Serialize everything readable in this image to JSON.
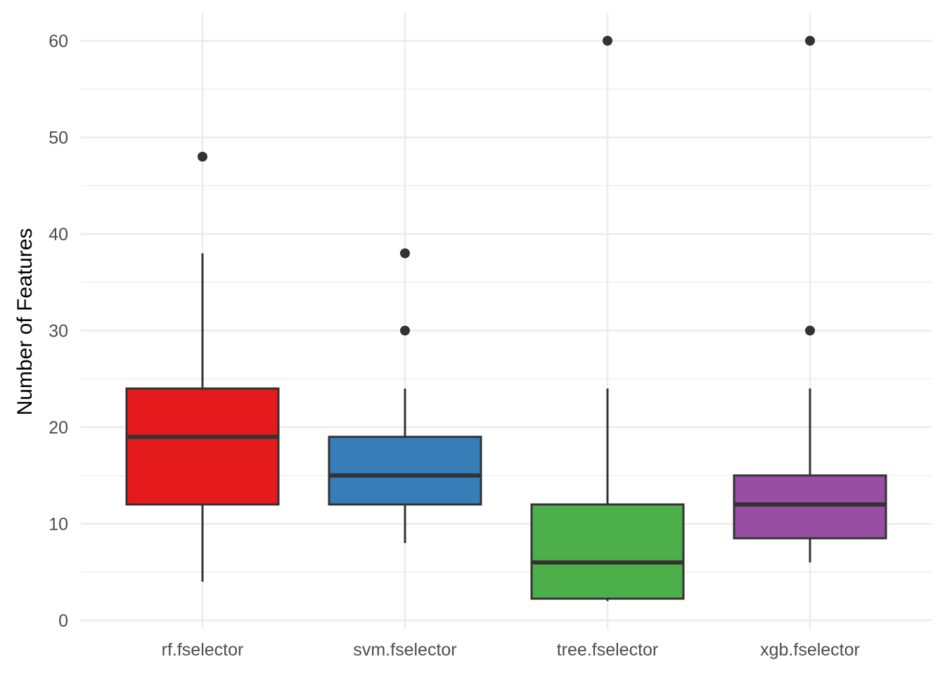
{
  "chart_data": {
    "type": "boxplot",
    "title": "",
    "xlabel": "",
    "ylabel": "Number of Features",
    "ylim": [
      0,
      62
    ],
    "yticks": [
      0,
      10,
      20,
      30,
      40,
      50,
      60
    ],
    "grid": true,
    "legend": "none",
    "categories": [
      "rf.fselector",
      "svm.fselector",
      "tree.fselector",
      "xgb.fselector"
    ],
    "boxes": [
      {
        "name": "rf.fselector",
        "color": "#E41A1C",
        "whisker_low": 4,
        "q1": 12,
        "median": 19,
        "q3": 24,
        "whisker_high": 38,
        "outliers": [
          48
        ]
      },
      {
        "name": "svm.fselector",
        "color": "#377EB8",
        "whisker_low": 8,
        "q1": 12,
        "median": 15,
        "q3": 19,
        "whisker_high": 24,
        "outliers": [
          30,
          38
        ]
      },
      {
        "name": "tree.fselector",
        "color": "#4DAF4A",
        "whisker_low": 2,
        "q1": 2.25,
        "median": 6,
        "q3": 12,
        "whisker_high": 24,
        "outliers": [
          60
        ]
      },
      {
        "name": "xgb.fselector",
        "color": "#984EA3",
        "whisker_low": 6,
        "q1": 8.5,
        "median": 12,
        "q3": 15,
        "whisker_high": 24,
        "outliers": [
          30,
          60
        ]
      }
    ]
  }
}
